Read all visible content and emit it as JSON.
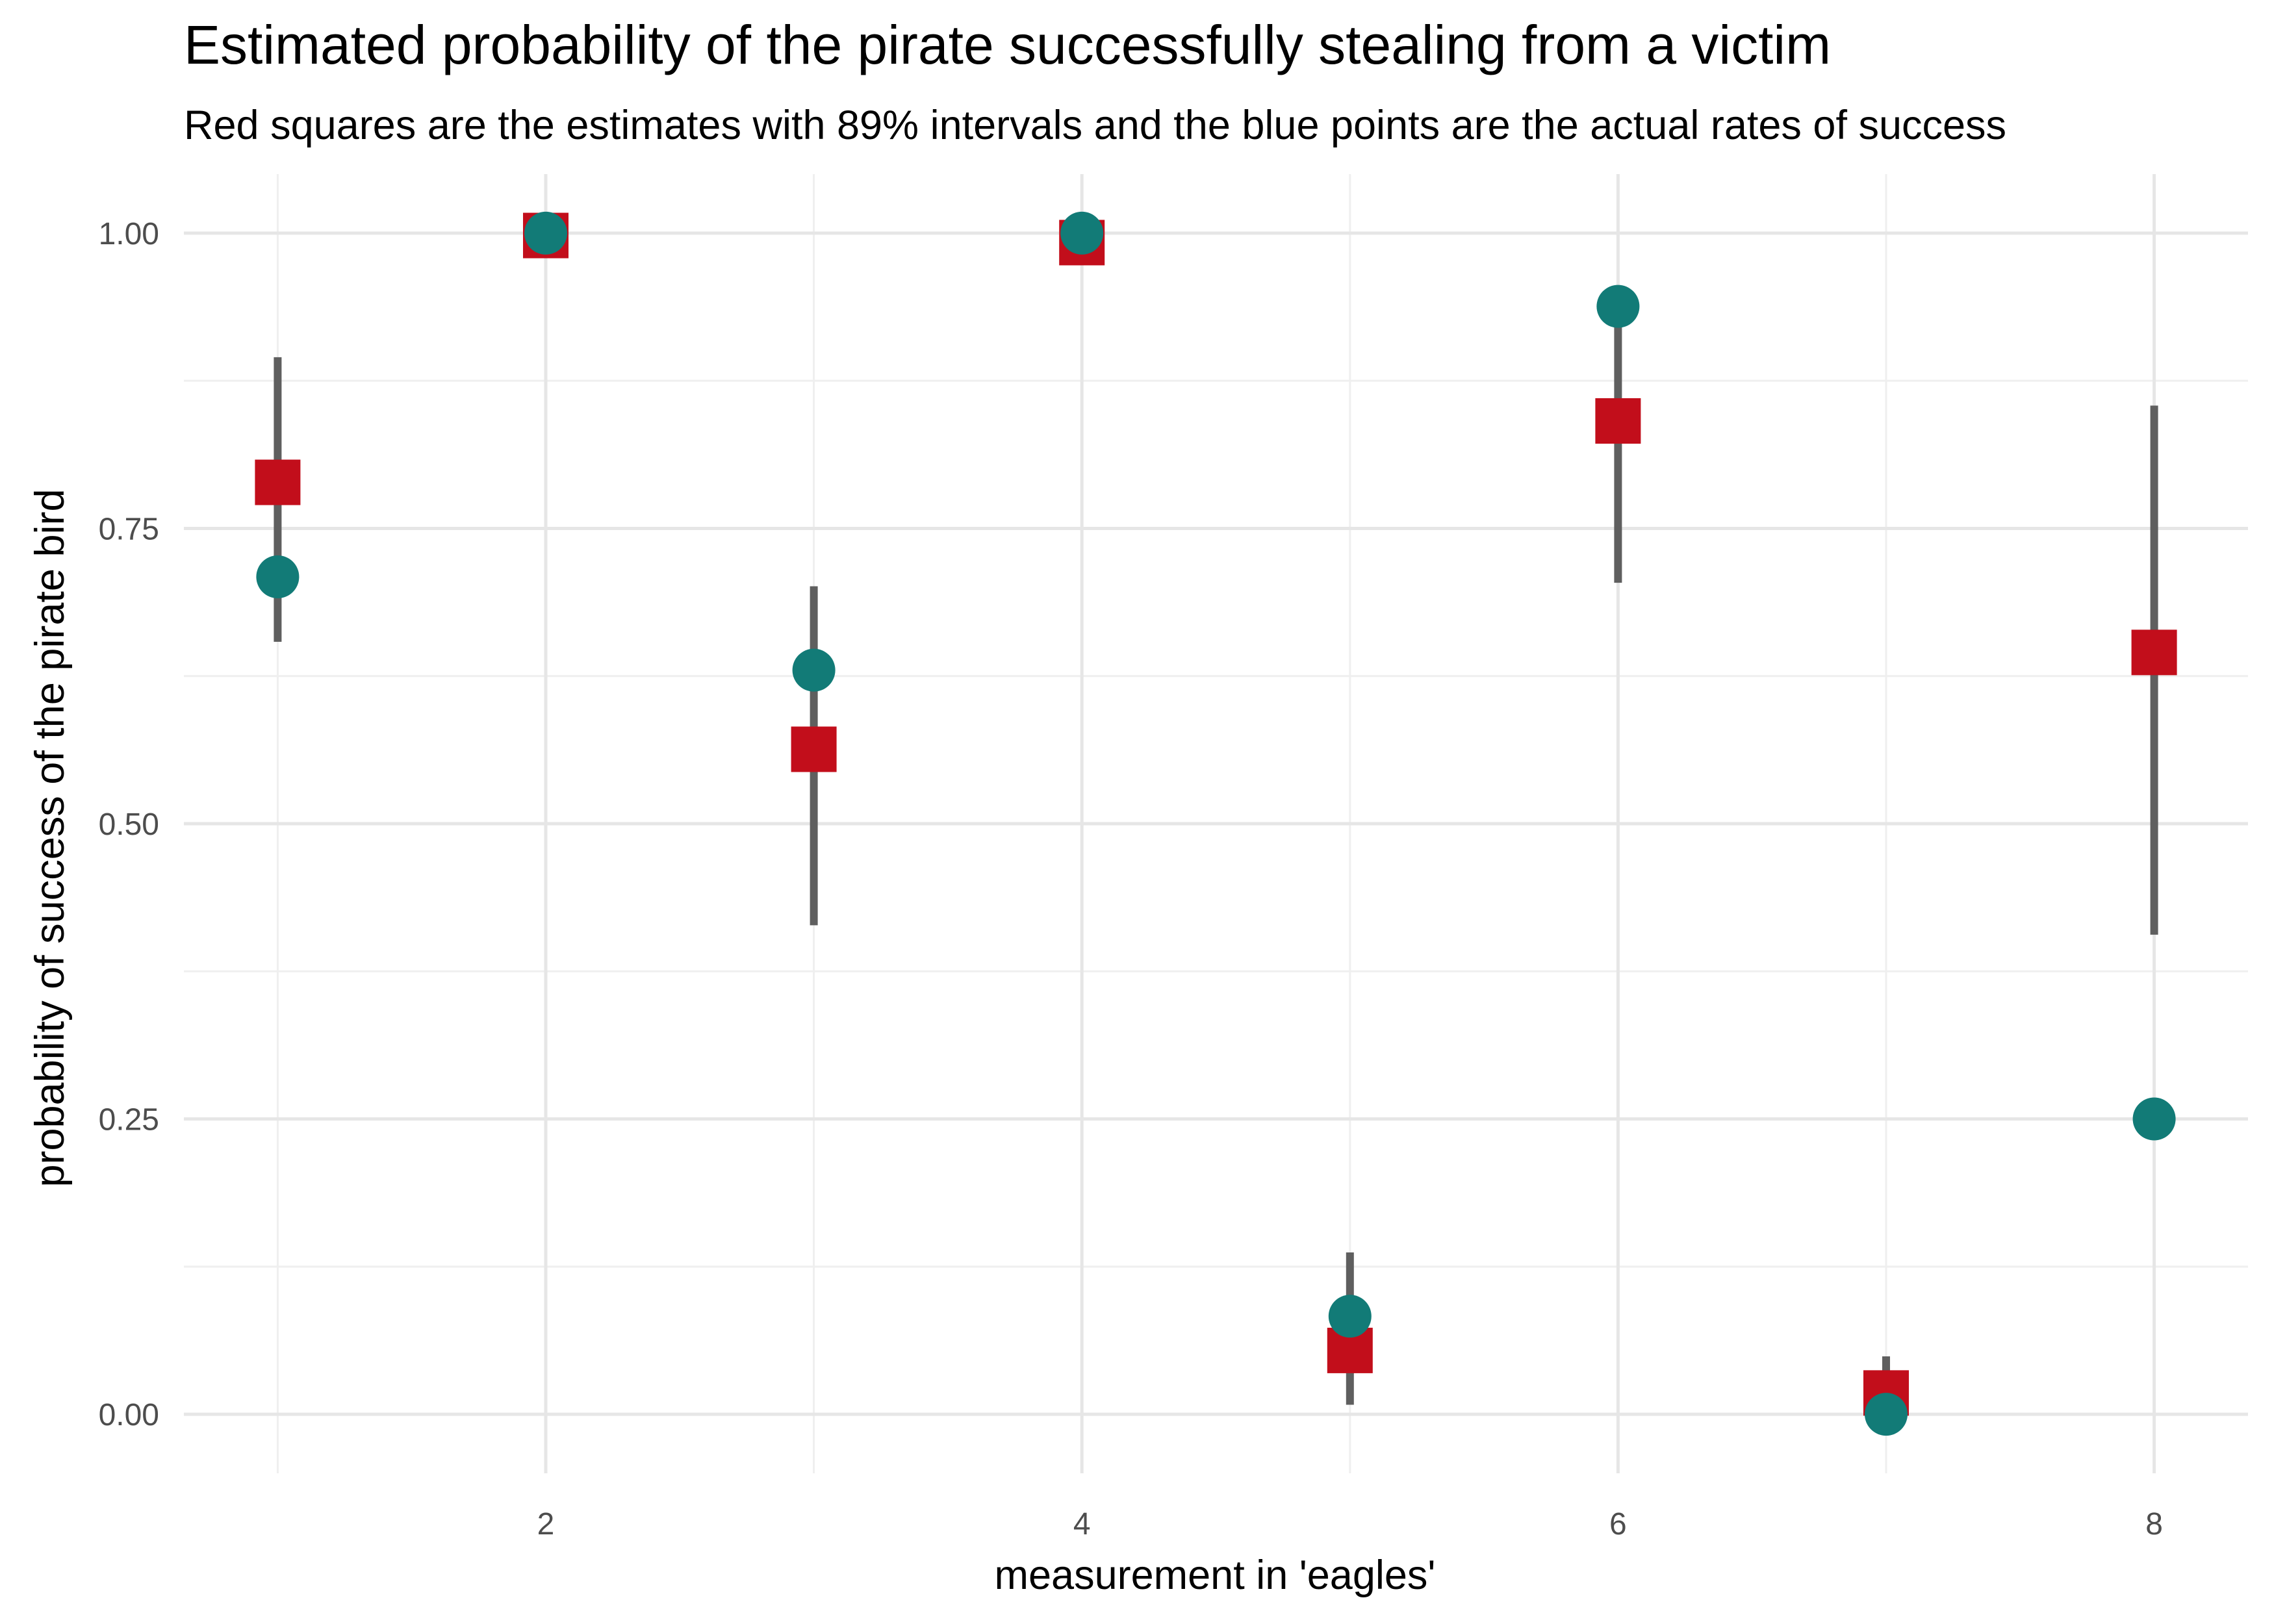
{
  "chart_data": {
    "type": "scatter",
    "title": "Estimated probability of the pirate successfully stealing from a victim",
    "subtitle": "Red squares are the estimates with 89% intervals and the blue points are the actual rates of success",
    "xlabel": "measurement in 'eagles'",
    "ylabel": "probability of success of the pirate bird",
    "xlim": [
      0.65,
      8.35
    ],
    "ylim": [
      -0.05,
      1.05
    ],
    "x_ticks": [
      2,
      4,
      6,
      8
    ],
    "x_tick_labels": [
      "2",
      "4",
      "6",
      "8"
    ],
    "y_ticks": [
      0,
      0.25,
      0.5,
      0.75,
      1
    ],
    "y_tick_labels": [
      "0.00",
      "0.25",
      "0.50",
      "0.75",
      "1.00"
    ],
    "x_minor": [
      1,
      3,
      5,
      7
    ],
    "y_minor": [
      0.125,
      0.375,
      0.625,
      0.875
    ],
    "grid": true,
    "legend": "none",
    "colors": {
      "estimate": "#c20e1b",
      "actual": "#127b77",
      "interval": "#5f5f5f"
    },
    "series": [
      {
        "marker": "square",
        "x": [
          1,
          2,
          3,
          4,
          5,
          6,
          7,
          8
        ],
        "y": [
          0.789,
          0.998,
          0.563,
          0.992,
          0.054,
          0.841,
          0.018,
          0.645
        ],
        "lower": [
          0.654,
          0.993,
          0.414,
          0.975,
          0.008,
          0.704,
          0.001,
          0.406
        ],
        "upper": [
          0.895,
          1.0,
          0.701,
          0.998,
          0.137,
          0.938,
          0.049,
          0.854
        ]
      },
      {
        "marker": "circle",
        "x": [
          1,
          2,
          3,
          4,
          5,
          6,
          7,
          8
        ],
        "y": [
          0.709,
          1.0,
          0.63,
          1.0,
          0.083,
          0.938,
          0.0,
          0.25
        ]
      }
    ]
  }
}
